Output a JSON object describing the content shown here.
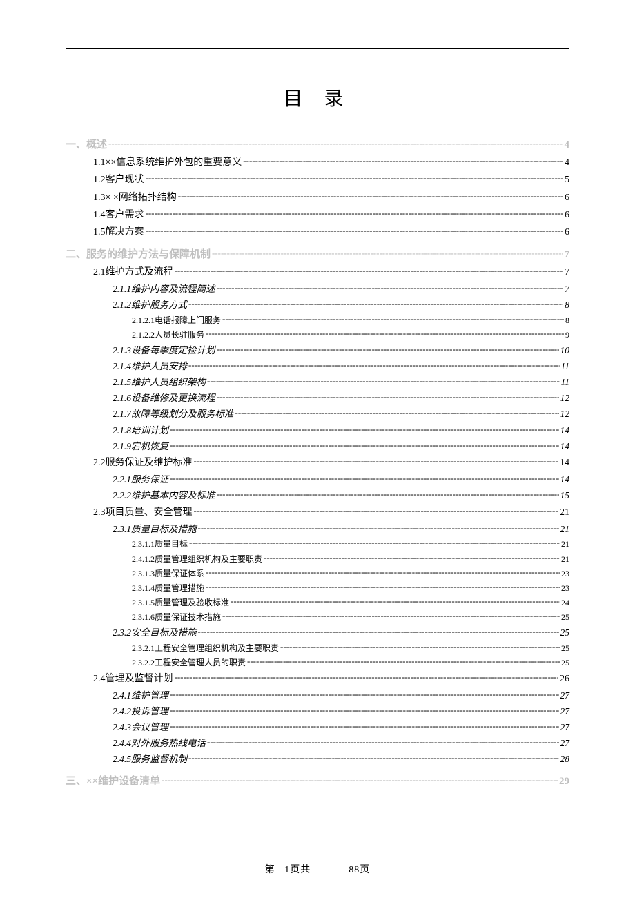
{
  "title": "目 录",
  "footer": {
    "prefix": "第",
    "current": "1",
    "mid1": "页共",
    "total": "88",
    "mid2": "页"
  },
  "colors": {
    "text": "#000000",
    "faded": "#bfbfbf",
    "background": "#ffffff"
  },
  "typography": {
    "title_fontsize": 28,
    "body_fontsize": 14,
    "small_fontsize": 12,
    "font_family": "SimSun"
  },
  "toc": [
    {
      "label": "一、概述",
      "page": "4",
      "level": 0,
      "bold": true,
      "faded": true,
      "fs": "fs-15",
      "gap": false
    },
    {
      "label": "1.1××信息系统维护外包的重要意义",
      "page": "4",
      "level": 1,
      "fs": "fs-14",
      "gap": false
    },
    {
      "label": "1.2客户现状",
      "page": "5",
      "level": 1,
      "fs": "fs-14",
      "gap": false
    },
    {
      "label": "1.3× ×网络拓扑结构",
      "page": "6",
      "level": 1,
      "fs": "fs-14",
      "gap": false
    },
    {
      "label": "1.4客户需求",
      "page": "6",
      "level": 1,
      "fs": "fs-14",
      "gap": false
    },
    {
      "label": "1.5解决方案",
      "page": "6",
      "level": 1,
      "fs": "fs-14",
      "gap": false
    },
    {
      "label": "二、服务的维护方法与保障机制",
      "page": "7",
      "level": 0,
      "bold": true,
      "faded": true,
      "fs": "fs-15",
      "gap": true
    },
    {
      "label": "2.1维护方式及流程",
      "page": "7",
      "level": 1,
      "fs": "fs-14",
      "gap": false
    },
    {
      "label": "2.1.1维护内容及流程简述",
      "page": "7",
      "level": 2,
      "italic": true,
      "fs": "fs-135",
      "gap": false
    },
    {
      "label": "2.1.2维护服务方式",
      "page": "8",
      "level": 2,
      "italic": true,
      "fs": "fs-135",
      "gap": false
    },
    {
      "label": "2.1.2.1电话报障上门服务",
      "page": "8",
      "level": 3,
      "fs": "fs-12",
      "gap": false
    },
    {
      "label": "2.1.2.2人员长驻服务",
      "page": "9",
      "level": 3,
      "fs": "fs-12",
      "gap": false
    },
    {
      "label": "2.1.3设备每季度定检计划",
      "page": "10",
      "level": 2,
      "italic": true,
      "fs": "fs-135",
      "gap": false
    },
    {
      "label": "2.1.4维护人员安排",
      "page": "11",
      "level": 2,
      "italic": true,
      "fs": "fs-135",
      "gap": false
    },
    {
      "label": "2.1.5维护人员组织架构",
      "page": "11",
      "level": 2,
      "italic": true,
      "fs": "fs-135",
      "gap": false
    },
    {
      "label": "2.1.6设备维修及更换流程",
      "page": "12",
      "level": 2,
      "italic": true,
      "fs": "fs-135",
      "gap": false
    },
    {
      "label": "2.1.7故障等级划分及服务标准",
      "page": "12",
      "level": 2,
      "italic": true,
      "fs": "fs-135",
      "gap": false
    },
    {
      "label": "2.1.8培训计划",
      "page": "14",
      "level": 2,
      "italic": true,
      "fs": "fs-135",
      "gap": false
    },
    {
      "label": "2.1.9宕机恢复",
      "page": "14",
      "level": 2,
      "italic": true,
      "fs": "fs-135",
      "gap": false
    },
    {
      "label": "2.2服务保证及维护标准",
      "page": "14",
      "level": 1,
      "fs": "fs-14",
      "gap": false
    },
    {
      "label": "2.2.1服务保证",
      "page": "14",
      "level": 2,
      "italic": true,
      "fs": "fs-135",
      "gap": false
    },
    {
      "label": "2.2.2维护基本内容及标准",
      "page": "15",
      "level": 2,
      "italic": true,
      "fs": "fs-135",
      "gap": false
    },
    {
      "label": "2.3项目质量、安全管理",
      "page": "21",
      "level": 1,
      "fs": "fs-14",
      "gap": false
    },
    {
      "label": "2.3.1质量目标及措施",
      "page": "21",
      "level": 2,
      "italic": true,
      "fs": "fs-135",
      "gap": false
    },
    {
      "label": "2.3.1.1质量目标",
      "page": "21",
      "level": 3,
      "fs": "fs-12",
      "gap": false
    },
    {
      "label": "2.4.1.2质量管理组织机构及主要职责",
      "page": "21",
      "level": 3,
      "fs": "fs-12",
      "gap": false
    },
    {
      "label": "2.3.1.3质量保证体系",
      "page": "23",
      "level": 3,
      "fs": "fs-12",
      "gap": false
    },
    {
      "label": "2.3.1.4质量管理措施",
      "page": "23",
      "level": 3,
      "fs": "fs-12",
      "gap": false
    },
    {
      "label": "2.3.1.5质量管理及验收标准",
      "page": "24",
      "level": 3,
      "fs": "fs-12",
      "gap": false
    },
    {
      "label": "2.3.1.6质量保证技术措施",
      "page": "25",
      "level": 3,
      "fs": "fs-12",
      "gap": false
    },
    {
      "label": "2.3.2安全目标及措施",
      "page": "25",
      "level": 2,
      "italic": true,
      "fs": "fs-135",
      "gap": false
    },
    {
      "label": "2.3.2.1工程安全管理组织机构及主要职责",
      "page": "25",
      "level": 3,
      "fs": "fs-12",
      "gap": false
    },
    {
      "label": "2.3.2.2工程安全管理人员的职责",
      "page": "25",
      "level": 3,
      "fs": "fs-12",
      "gap": false
    },
    {
      "label": "2.4管理及监督计划",
      "page": "26",
      "level": 1,
      "fs": "fs-14",
      "gap": false
    },
    {
      "label": "2.4.1维护管理",
      "page": "27",
      "level": 2,
      "italic": true,
      "fs": "fs-135",
      "gap": false
    },
    {
      "label": "2.4.2投诉管理",
      "page": "27",
      "level": 2,
      "italic": true,
      "fs": "fs-135",
      "gap": false
    },
    {
      "label": "2.4.3会议管理",
      "page": "27",
      "level": 2,
      "italic": true,
      "fs": "fs-135",
      "gap": false
    },
    {
      "label": "2.4.4对外服务热线电话",
      "page": "27",
      "level": 2,
      "italic": true,
      "fs": "fs-135",
      "gap": false
    },
    {
      "label": "2.4.5服务监督机制",
      "page": "28",
      "level": 2,
      "italic": true,
      "fs": "fs-135",
      "gap": false
    },
    {
      "label": "三、××维护设备清单",
      "page": "29",
      "level": 0,
      "bold": true,
      "faded": true,
      "fs": "fs-15",
      "gap": true
    }
  ]
}
